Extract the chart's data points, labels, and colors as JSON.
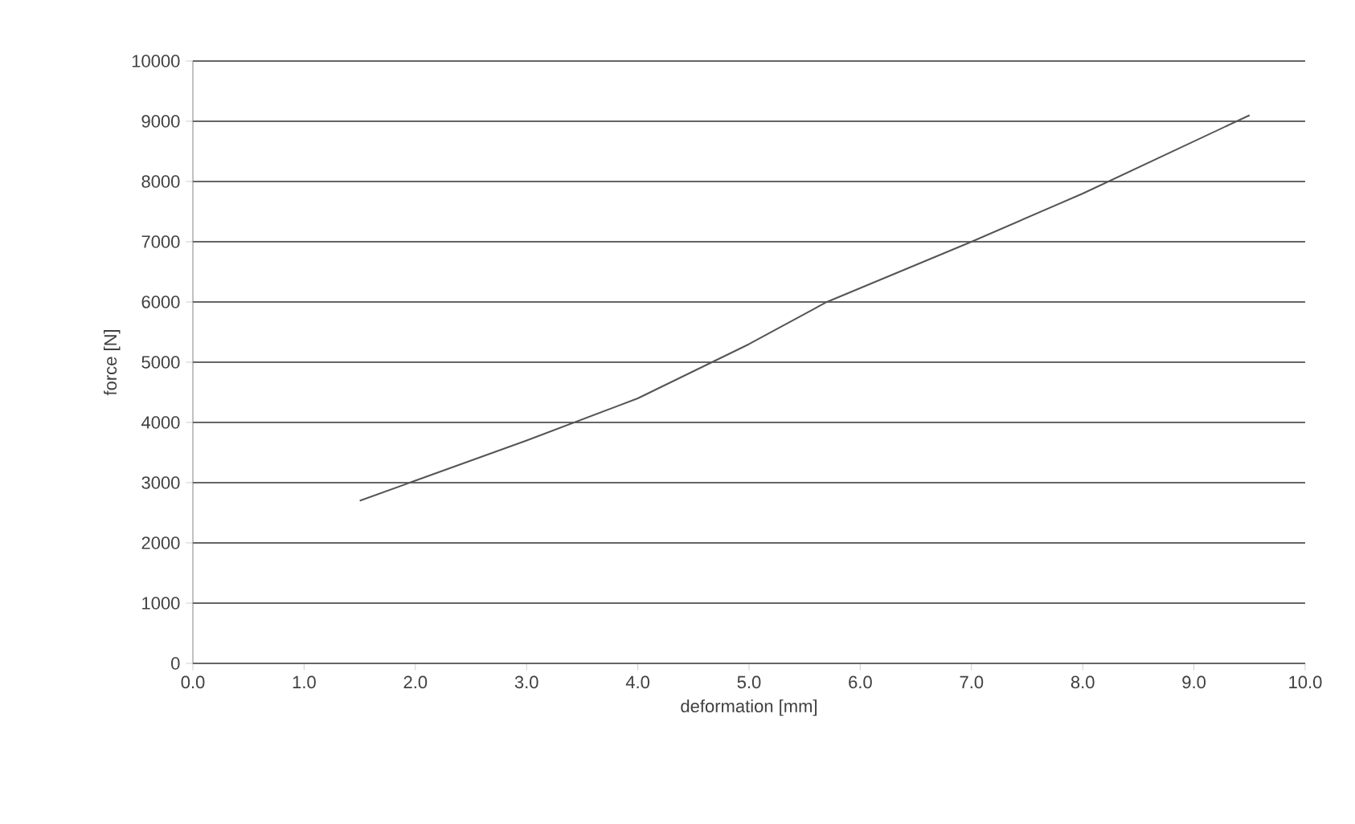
{
  "chart_data": {
    "type": "line",
    "xlabel": "deformation [mm]",
    "ylabel": "force [N]",
    "x": [
      1.5,
      3.0,
      4.0,
      5.0,
      5.7,
      7.0,
      8.0,
      9.5
    ],
    "series": [
      {
        "color": "#555555",
        "values": [
          2700,
          3700,
          4400,
          5300,
          6000,
          7000,
          7800,
          9100
        ]
      }
    ],
    "xlim": [
      0,
      10
    ],
    "ylim": [
      0,
      10000
    ],
    "xticks": [
      {
        "value": 0,
        "label": "0.0"
      },
      {
        "value": 1,
        "label": "1.0"
      },
      {
        "value": 2,
        "label": "2.0"
      },
      {
        "value": 3,
        "label": "3.0"
      },
      {
        "value": 4,
        "label": "4.0"
      },
      {
        "value": 5,
        "label": "5.0"
      },
      {
        "value": 6,
        "label": "6.0"
      },
      {
        "value": 7,
        "label": "7.0"
      },
      {
        "value": 8,
        "label": "8.0"
      },
      {
        "value": 9,
        "label": "9.0"
      },
      {
        "value": 10,
        "label": "10.0"
      }
    ],
    "yticks": [
      0,
      1000,
      2000,
      3000,
      4000,
      5000,
      6000,
      7000,
      8000,
      9000,
      10000
    ],
    "grid": "y",
    "marker": "none",
    "line_style": "solid"
  }
}
